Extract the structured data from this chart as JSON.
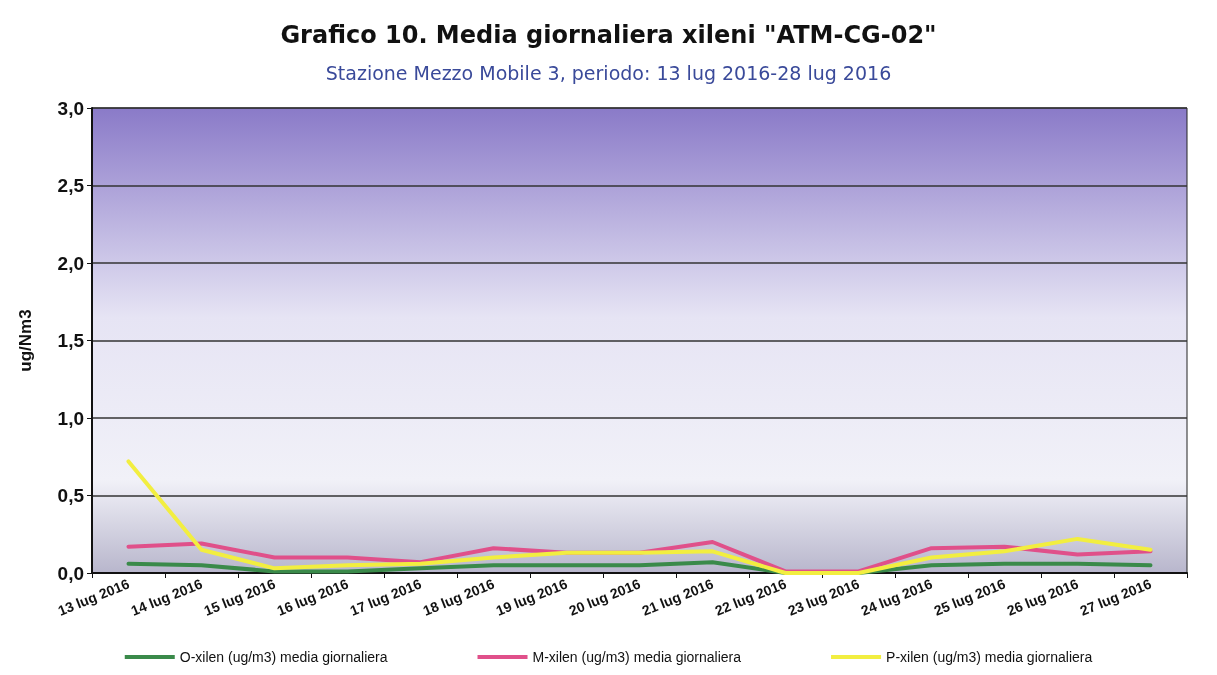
{
  "chart_data": {
    "type": "line",
    "title": "Grafico 10. Media giornaliera xileni \"ATM-CG-02\"",
    "subtitle": "Stazione Mezzo Mobile 3, periodo: 13 lug 2016-28 lug 2016",
    "ylabel": "ug/Nm3",
    "categories": [
      "13 lug 2016",
      "14 lug 2016",
      "15 lug 2016",
      "16 lug 2016",
      "17 lug 2016",
      "18 lug 2016",
      "19 lug 2016",
      "20 lug 2016",
      "21 lug 2016",
      "22 lug 2016",
      "23 lug 2016",
      "24 lug 2016",
      "25 lug 2016",
      "26 lug 2016",
      "27 lug 2016"
    ],
    "series": [
      {
        "name": "O-xilen (ug/m3) media giornaliera",
        "color": "#3a8a4a",
        "values": [
          0.06,
          0.05,
          0.01,
          0.01,
          0.03,
          0.05,
          0.05,
          0.05,
          0.07,
          0.0,
          0.0,
          0.05,
          0.06,
          0.06,
          0.05
        ]
      },
      {
        "name": "M-xilen (ug/m3) media giornaliera",
        "color": "#e0508a",
        "values": [
          0.17,
          0.19,
          0.1,
          0.1,
          0.07,
          0.16,
          0.13,
          0.13,
          0.2,
          0.01,
          0.01,
          0.16,
          0.17,
          0.12,
          0.14
        ]
      },
      {
        "name": "P-xilen (ug/m3) media giornaliera",
        "color": "#f2ee40",
        "values": [
          0.72,
          0.15,
          0.03,
          0.05,
          0.06,
          0.1,
          0.13,
          0.13,
          0.14,
          0.0,
          0.0,
          0.1,
          0.14,
          0.22,
          0.15
        ]
      }
    ],
    "ylim": [
      0,
      3
    ],
    "yticks": [
      {
        "value": 0,
        "label": "0,0"
      },
      {
        "value": 0.5,
        "label": "0,5"
      },
      {
        "value": 1,
        "label": "1,0"
      },
      {
        "value": 1.5,
        "label": "1,5"
      },
      {
        "value": 2,
        "label": "2,0"
      },
      {
        "value": 2.5,
        "label": "2,5"
      },
      {
        "value": 3,
        "label": "3,0"
      }
    ],
    "grid": "y",
    "legend": "bottom",
    "marker": "none",
    "line_style": "solid"
  }
}
